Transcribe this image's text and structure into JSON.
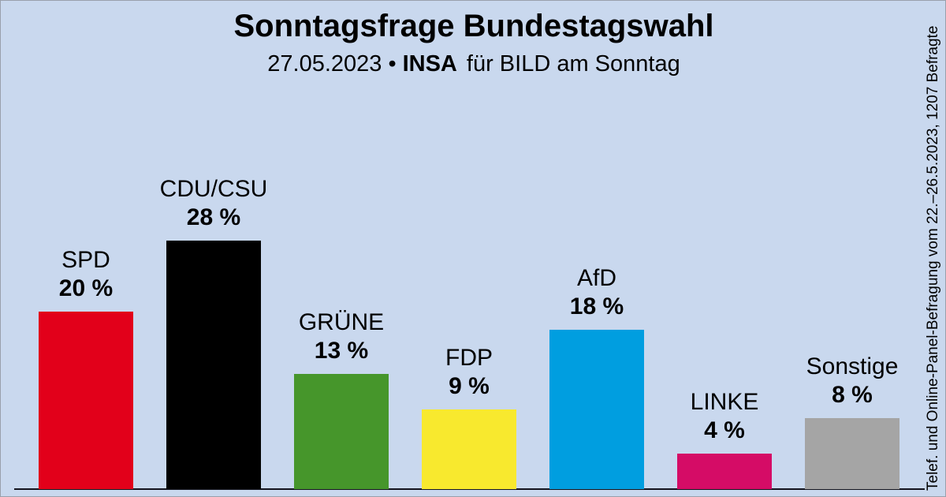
{
  "title": "Sonntagsfrage Bundestagswahl",
  "subtitle": {
    "date": "27.05.2023",
    "bullet": "•",
    "institute": "INSA",
    "suffix": "für BILD am Sonntag"
  },
  "side_note": "Telef. und Online-Panel-Befragung vom 22.–26.5.2023, 1207 Befragte",
  "chart_data": {
    "type": "bar",
    "title": "Sonntagsfrage Bundestagswahl",
    "subtitle": "27.05.2023 • INSA für BILD am Sonntag",
    "categories": [
      "SPD",
      "CDU/CSU",
      "GRÜNE",
      "FDP",
      "AfD",
      "LINKE",
      "Sonstige"
    ],
    "values": [
      20,
      28,
      13,
      9,
      18,
      4,
      8
    ],
    "value_labels": [
      "20 %",
      "28 %",
      "13 %",
      "9 %",
      "18 %",
      "4 %",
      "8 %"
    ],
    "bar_colors": [
      "#e2001a",
      "#000000",
      "#46962b",
      "#f8e92e",
      "#009ee0",
      "#d50c66",
      "#a5a5a5"
    ],
    "unit": "%",
    "xlabel": "",
    "ylabel": "",
    "ylim": [
      0,
      30
    ],
    "grid": false,
    "legend": "none",
    "background_color": "#c9d8ee",
    "baseline_color": "#14141e",
    "text_color": "#000000"
  }
}
